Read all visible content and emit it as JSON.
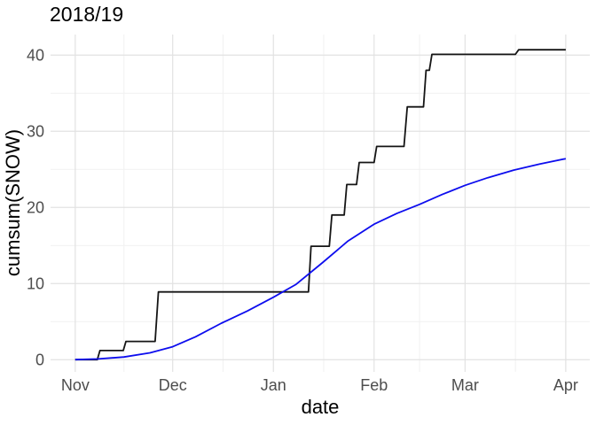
{
  "chart_data": {
    "type": "line",
    "title": "2018/19",
    "xlabel": "date",
    "ylabel": "cumsum(SNOW)",
    "legend": "none",
    "grid": "major+minor",
    "colors": {
      "background": "#ffffff",
      "grid_major": "#e2e2e2",
      "grid_minor": "#f1f1f1",
      "tick_label": "#4d4d4d",
      "axis_title": "#000000",
      "season_line": "#151515",
      "average_line": "#0d0dee"
    },
    "x_axis": {
      "unit": "days since Nov 1",
      "range_days": [
        -7.6,
        158.4
      ],
      "ticks": [
        {
          "label": "Nov",
          "day": 0
        },
        {
          "label": "Dec",
          "day": 30
        },
        {
          "label": "Jan",
          "day": 61
        },
        {
          "label": "Feb",
          "day": 92
        },
        {
          "label": "Mar",
          "day": 120
        },
        {
          "label": "Apr",
          "day": 151
        }
      ],
      "minor_tick_days": [
        15,
        45.5,
        76.5,
        106,
        135.5
      ]
    },
    "y_axis": {
      "range": [
        -1.6,
        42.7
      ],
      "ticks": [
        {
          "label": "0",
          "value": 0
        },
        {
          "label": "10",
          "value": 10
        },
        {
          "label": "20",
          "value": 20
        },
        {
          "label": "30",
          "value": 30
        },
        {
          "label": "40",
          "value": 40
        }
      ],
      "minor_tick_values": [
        5,
        15,
        25,
        35
      ]
    },
    "series": [
      {
        "name": "season-2018-19-cumulative-snow",
        "style": "step",
        "color_key": "season_line",
        "stroke_width": 1.8,
        "points": [
          [
            0,
            0
          ],
          [
            6.8,
            0
          ],
          [
            7.6,
            1.2
          ],
          [
            14.8,
            1.2
          ],
          [
            15.6,
            2.4
          ],
          [
            24.6,
            2.4
          ],
          [
            25.6,
            8.9
          ],
          [
            71.8,
            8.9
          ],
          [
            72.6,
            14.9
          ],
          [
            78.2,
            14.9
          ],
          [
            79.0,
            19.0
          ],
          [
            82.8,
            19.0
          ],
          [
            83.6,
            23.0
          ],
          [
            86.6,
            23.0
          ],
          [
            87.4,
            25.9
          ],
          [
            92.0,
            25.9
          ],
          [
            92.8,
            28.0
          ],
          [
            101.2,
            28.0
          ],
          [
            102.2,
            33.2
          ],
          [
            107.2,
            33.2
          ],
          [
            108.0,
            38.0
          ],
          [
            109.0,
            38.0
          ],
          [
            109.8,
            40.1
          ],
          [
            135.5,
            40.1
          ],
          [
            136.5,
            40.7
          ],
          [
            151,
            40.7
          ]
        ]
      },
      {
        "name": "average-cumulative-snow",
        "style": "smooth",
        "color_key": "average_line",
        "stroke_width": 1.8,
        "points": [
          [
            0,
            0
          ],
          [
            7,
            0.1
          ],
          [
            15,
            0.35
          ],
          [
            23,
            0.9
          ],
          [
            30,
            1.7
          ],
          [
            37,
            3.0
          ],
          [
            45,
            4.8
          ],
          [
            53,
            6.4
          ],
          [
            61,
            8.2
          ],
          [
            68,
            9.9
          ],
          [
            76,
            12.7
          ],
          [
            84,
            15.6
          ],
          [
            92,
            17.8
          ],
          [
            99,
            19.2
          ],
          [
            106,
            20.4
          ],
          [
            113,
            21.7
          ],
          [
            120,
            22.9
          ],
          [
            127,
            23.9
          ],
          [
            135,
            24.9
          ],
          [
            143,
            25.7
          ],
          [
            151,
            26.4
          ]
        ]
      }
    ]
  }
}
